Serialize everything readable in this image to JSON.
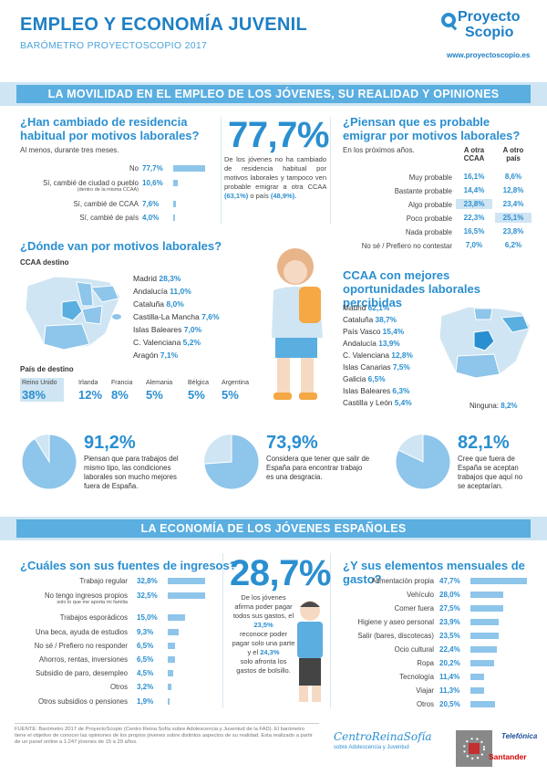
{
  "header": {
    "title": "EMPLEO Y ECONOMÍA JUVENIL",
    "subtitle": "BARÓMETRO PROYECTOSCOPIO 2017",
    "logo_line1": "Proyecto",
    "logo_line2": "Scopio",
    "logo_url": "www.proyectoscopio.es"
  },
  "banner1": "LA MOVILIDAD EN EL EMPLEO DE LOS JÓVENES, SU REALIDAD Y OPINIONES",
  "residence": {
    "title": "¿Han cambiado de residencia habitual por motivos laborales?",
    "note": "Al menos, durante tres meses.",
    "rows": [
      {
        "label": "No",
        "sub": "",
        "value": "77,7%",
        "pct": 77.7
      },
      {
        "label": "Sí, cambié de ciudad o pueblo",
        "sub": "(dentro de la misma CCAA)",
        "value": "10,6%",
        "pct": 10.6
      },
      {
        "label": "Sí, cambié de CCAA",
        "sub": "",
        "value": "7,6%",
        "pct": 7.6
      },
      {
        "label": "Sí, cambié de país",
        "sub": "",
        "value": "4,0%",
        "pct": 4.0
      }
    ]
  },
  "center_stat": {
    "value": "77,7%",
    "text1": "De los jóvenes no ha cambiado de residencia habitual por motivos laborales y tampoco ven probable emigrar a otra CCAA",
    "v1": "(63,1%)",
    "text2": "o país",
    "v2": "(48,9%)."
  },
  "emigrate": {
    "title": "¿Piensan que es probable emigrar por motivos laborales?",
    "note": "En los próximos años.",
    "col1": "A otra CCAA",
    "col2": "A otro país",
    "rows": [
      {
        "label": "Muy probable",
        "a": "16,1%",
        "b": "8,6%"
      },
      {
        "label": "Bastante probable",
        "a": "14,4%",
        "b": "12,8%"
      },
      {
        "label": "Algo probable",
        "a": "23,8%",
        "b": "23,4%"
      },
      {
        "label": "Poco probable",
        "a": "22,3%",
        "b": "25,1%"
      },
      {
        "label": "Nada probable",
        "a": "16,5%",
        "b": "23,8%"
      },
      {
        "label": "No sé / Prefiero no contestar",
        "a": "7,0%",
        "b": "6,2%"
      }
    ]
  },
  "destinations": {
    "title": "¿Dónde van por motivos laborales?",
    "ccaa_label": "CCAA destino",
    "ccaa": [
      {
        "name": "Madrid",
        "value": "28,3%"
      },
      {
        "name": "Andalucía",
        "value": "11,0%"
      },
      {
        "name": "Cataluña",
        "value": "8,0%"
      },
      {
        "name": "Castilla-La Mancha",
        "value": "7,6%"
      },
      {
        "name": "Islas Baleares",
        "value": "7,0%"
      },
      {
        "name": "C. Valenciana",
        "value": "5,2%"
      },
      {
        "name": "Aragón",
        "value": "7,1%"
      }
    ],
    "country_label": "País de destino",
    "countries": [
      {
        "name": "Reino Unido",
        "value": "38%"
      },
      {
        "name": "Irlanda",
        "value": "12%"
      },
      {
        "name": "Francia",
        "value": "8%"
      },
      {
        "name": "Alemania",
        "value": "5%"
      },
      {
        "name": "Bélgica",
        "value": "5%"
      },
      {
        "name": "Argentina",
        "value": "5%"
      }
    ]
  },
  "opportunities": {
    "title": "CCAA con mejores oportunidades laborales percibidas",
    "rows": [
      {
        "name": "Madrid",
        "value": "62,1%"
      },
      {
        "name": "Cataluña",
        "value": "38,7%"
      },
      {
        "name": "País Vasco",
        "value": "15,4%"
      },
      {
        "name": "Andalucía",
        "value": "13,9%"
      },
      {
        "name": "C. Valenciana",
        "value": "12,8%"
      },
      {
        "name": "Islas Canarias",
        "value": "7,5%"
      },
      {
        "name": "Galicia",
        "value": "6,5%"
      },
      {
        "name": "Islas Baleares",
        "value": "6,3%"
      },
      {
        "name": "Castilla y León",
        "value": "5,4%"
      }
    ],
    "none_label": "Ninguna:",
    "none_value": "8,2%"
  },
  "pies": [
    {
      "value": "91,2%",
      "pct": 91.2,
      "text": "Piensan que para trabajos del mismo tipo, las condiciones laborales son mucho mejores fuera de España."
    },
    {
      "value": "73,9%",
      "pct": 73.9,
      "text": "Considera que tener que salir de España para encontrar trabajo es una desgracia."
    },
    {
      "value": "82,1%",
      "pct": 82.1,
      "text": "Cree que fuera de España se aceptan trabajos que aquí no se aceptarían."
    }
  ],
  "banner2": "LA ECONOMÍA DE LOS JÓVENES ESPAÑOLES",
  "income": {
    "title": "¿Cuáles son sus fuentes de ingresos?",
    "rows": [
      {
        "label": "Trabajo regular",
        "sub": "",
        "value": "32,8%",
        "pct": 32.8
      },
      {
        "label": "No tengo ingresos propios",
        "sub": "solo lo que me aporta mi familia",
        "value": "32,5%",
        "pct": 32.5
      },
      {
        "label": "Trabajos esporádicos",
        "sub": "",
        "value": "15,0%",
        "pct": 15.0
      },
      {
        "label": "Una beca, ayuda de estudios",
        "sub": "",
        "value": "9,3%",
        "pct": 9.3
      },
      {
        "label": "No sé / Prefiero no responder",
        "sub": "",
        "value": "6,5%",
        "pct": 6.5
      },
      {
        "label": "Ahorros, rentas, inversiones",
        "sub": "",
        "value": "6,5%",
        "pct": 6.5
      },
      {
        "label": "Subsidio de paro, desempleo",
        "sub": "",
        "value": "4,5%",
        "pct": 4.5
      },
      {
        "label": "Otros",
        "sub": "",
        "value": "3,2%",
        "pct": 3.2
      },
      {
        "label": "Otros subsidios o pensiones",
        "sub": "",
        "value": "1,9%",
        "pct": 1.9
      }
    ]
  },
  "center_stat2": {
    "value": "28,7%",
    "text1": "De los jóvenes afirma poder pagar todos sus gastos, el",
    "v1": "23,5%",
    "text2": "reconoce poder pagar solo una parte y el",
    "v2": "24,3%",
    "text3": "solo afronta los gastos de bolsillo."
  },
  "expenses": {
    "title": "¿Y sus elementos mensuales de gasto?",
    "rows": [
      {
        "label": "Alimentación propia",
        "value": "47,7%",
        "pct": 47.7
      },
      {
        "label": "Vehículo",
        "value": "28,0%",
        "pct": 28.0
      },
      {
        "label": "Comer fuera",
        "value": "27,5%",
        "pct": 27.5
      },
      {
        "label": "Higiene y aseo personal",
        "value": "23,9%",
        "pct": 23.9
      },
      {
        "label": "Salir (bares, discotecas)",
        "value": "23,5%",
        "pct": 23.5
      },
      {
        "label": "Ocio cultural",
        "value": "22,4%",
        "pct": 22.4
      },
      {
        "label": "Ropa",
        "value": "20,2%",
        "pct": 20.2
      },
      {
        "label": "Tecnología",
        "value": "11,4%",
        "pct": 11.4
      },
      {
        "label": "Viajar",
        "value": "11,3%",
        "pct": 11.3
      },
      {
        "label": "Otros",
        "value": "20,5%",
        "pct": 20.5
      }
    ]
  },
  "footer": {
    "text": "FUENTE: Barómetro 2017 de ProyectoScopio (Centro Reina Sofía sobre Adolescencia y Juventud de la FAD). El barómetro tiene el objetivo de conocer las opiniones de los propios jóvenes sobre distintos aspectos de su realidad. Esta realizado a partir de un panel online a 1.247 jóvenes de 15 a 29 años.",
    "logo1_line1": "CentroReinaSofía",
    "logo1_line2": "sobre Adolescencia y Juventud",
    "logo2": "Telefónica",
    "logo3": "Santander"
  },
  "colors": {
    "accent": "#2a8fd0",
    "bar": "#8ec5ea",
    "banner": "#5aaee0",
    "light": "#cfe5f3"
  }
}
